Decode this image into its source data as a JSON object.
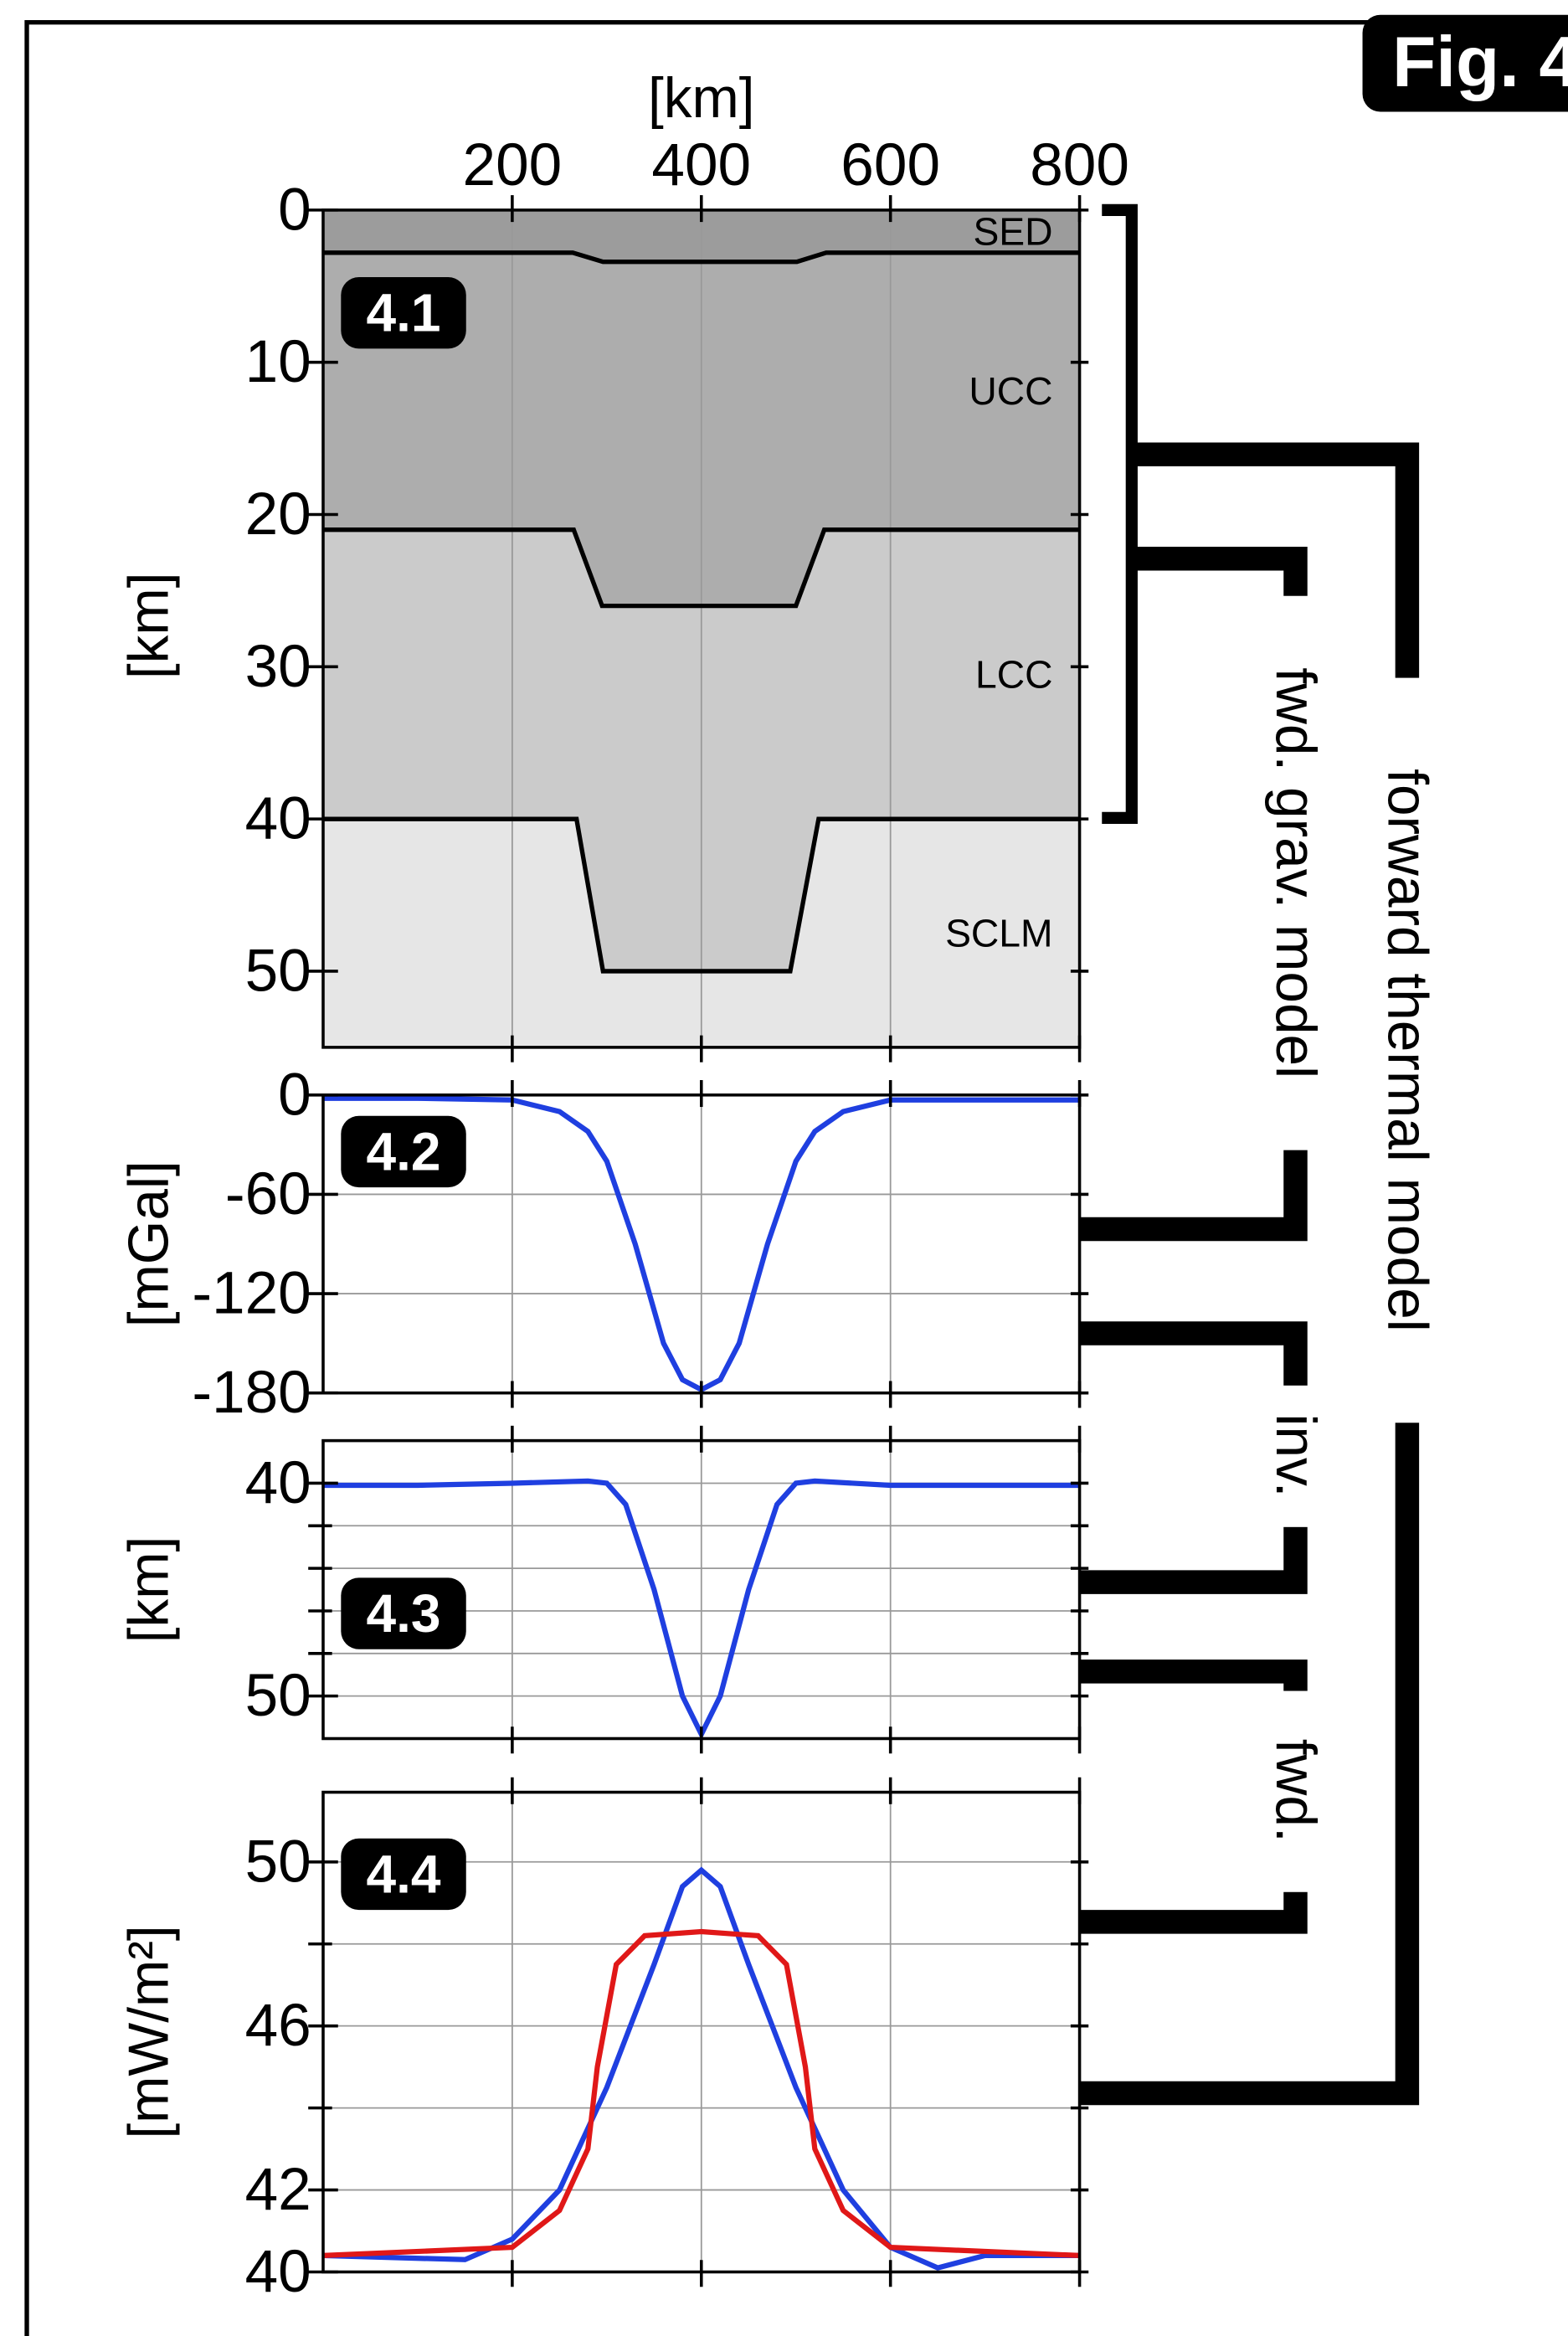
{
  "figure_label": "Fig. 4",
  "annotations": [
    "forward thermal model",
    "fwd. grav. model",
    "inv.",
    "fwd."
  ],
  "chart_data": [
    {
      "type": "layers",
      "label": "4.1",
      "xlabel": "[km]",
      "ylabel": "[km]",
      "xlim": [
        0,
        800
      ],
      "xticks": [
        200,
        400,
        600,
        800
      ],
      "ylim": [
        0,
        55
      ],
      "yticks": [
        0,
        10,
        20,
        30,
        40,
        50
      ],
      "y_inverted": true,
      "grid": "x",
      "series": [
        {
          "name": "SED",
          "color": "#9c9c9c",
          "x": [
            0,
            264,
            296,
            501,
            532,
            800
          ],
          "values": [
            2.8,
            2.8,
            3.4,
            3.4,
            2.8,
            2.8
          ]
        },
        {
          "name": "UCC",
          "color": "#adadad",
          "x": [
            0,
            265,
            295,
            500,
            530,
            800
          ],
          "values": [
            21,
            21,
            26,
            26,
            21,
            21
          ]
        },
        {
          "name": "LCC",
          "color": "#cbcbcb",
          "x": [
            0,
            268,
            296,
            494,
            524,
            800
          ],
          "values": [
            40,
            40,
            50,
            50,
            40,
            40
          ]
        },
        {
          "name": "SCLM",
          "color": "#e6e6e6"
        }
      ]
    },
    {
      "type": "line",
      "label": "4.2",
      "ylabel": "[mGal]",
      "xlim": [
        0,
        800
      ],
      "xticks": [
        200,
        400,
        600,
        800
      ],
      "ylim": [
        -180,
        0
      ],
      "yticks": [
        0,
        -60,
        -120,
        -180
      ],
      "grid": "both",
      "series": [
        {
          "color": "#1f3fe0",
          "x": [
            0,
            100,
            200,
            250,
            280,
            300,
            330,
            360,
            380,
            400,
            420,
            440,
            470,
            500,
            520,
            550,
            600,
            700,
            800
          ],
          "values": [
            -2,
            -2,
            -3,
            -10,
            -22,
            -40,
            -90,
            -150,
            -172,
            -178,
            -172,
            -150,
            -90,
            -40,
            -22,
            -10,
            -3,
            -3,
            -3
          ]
        }
      ]
    },
    {
      "type": "line",
      "label": "4.3",
      "ylabel": "[km]",
      "xlim": [
        0,
        800
      ],
      "xticks": [
        200,
        400,
        600,
        800
      ],
      "ylim": [
        38,
        52
      ],
      "yticks": [
        40,
        50
      ],
      "minor_yticks": [
        42,
        44,
        46,
        48
      ],
      "y_inverted": true,
      "grid": "both",
      "series": [
        {
          "color": "#1f3fe0",
          "x": [
            0,
            100,
            200,
            280,
            300,
            320,
            350,
            380,
            400,
            420,
            450,
            480,
            500,
            520,
            600,
            800
          ],
          "values": [
            40.1,
            40.1,
            40.0,
            39.9,
            40.0,
            41,
            45,
            50,
            51.8,
            50,
            45,
            41,
            40.0,
            39.9,
            40.1,
            40.1
          ]
        }
      ]
    },
    {
      "type": "line",
      "label": "4.4",
      "ylabel": "[mW/m²]",
      "xlim": [
        0,
        800
      ],
      "xticks": [
        200,
        400,
        600,
        800
      ],
      "ylim": [
        40,
        51.7
      ],
      "yticks": [
        40,
        42,
        46,
        50
      ],
      "minor_yticks": [
        44,
        48
      ],
      "grid": "both",
      "series": [
        {
          "color": "#1f3fe0",
          "x": [
            0,
            150,
            200,
            250,
            300,
            350,
            380,
            400,
            420,
            450,
            500,
            550,
            600,
            650,
            700,
            800
          ],
          "values": [
            40.4,
            40.3,
            40.8,
            42,
            44.5,
            47.5,
            49.4,
            49.8,
            49.4,
            47.5,
            44.5,
            42,
            40.6,
            40.1,
            40.4,
            40.4
          ]
        },
        {
          "color": "#e01818",
          "x": [
            0,
            200,
            250,
            280,
            290,
            310,
            340,
            400,
            460,
            490,
            510,
            520,
            550,
            600,
            800
          ],
          "values": [
            40.4,
            40.6,
            41.5,
            43,
            45,
            47.5,
            48.2,
            48.3,
            48.2,
            47.5,
            45,
            43,
            41.5,
            40.6,
            40.4
          ]
        }
      ]
    }
  ]
}
